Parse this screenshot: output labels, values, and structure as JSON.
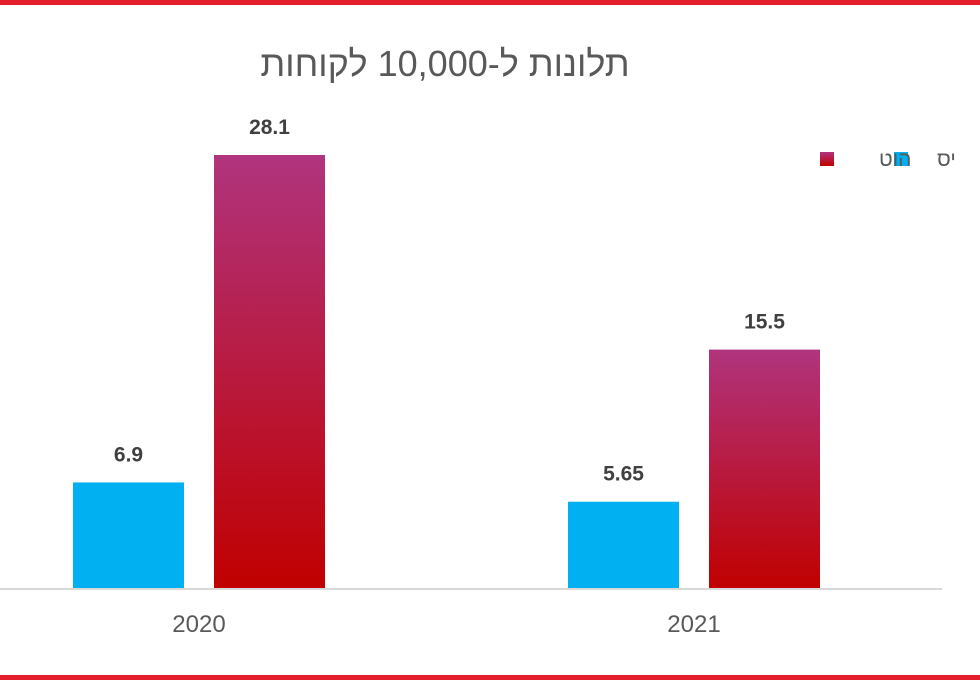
{
  "colors": {
    "frame": "#e51e2b",
    "yes": "#00b0f0",
    "hot_top": "#b0347e",
    "hot_bottom": "#c00000",
    "axis": "#d9d9d9"
  },
  "chart_data": {
    "type": "bar",
    "title": "תלונות ל-10,000 לקוחות",
    "categories": [
      "2020",
      "2021"
    ],
    "series": [
      {
        "name": "יס",
        "values": [
          6.9,
          5.65
        ],
        "labels": [
          "6.9",
          "5.65"
        ],
        "color": "#00b0f0"
      },
      {
        "name": "הוט",
        "values": [
          28.1,
          15.5
        ],
        "labels": [
          "28.1",
          "15.5"
        ],
        "color": "#b0347e"
      }
    ],
    "ylim": [
      0,
      28.1
    ],
    "xlabel": "",
    "ylabel": "",
    "grid": false,
    "legend": "top-right"
  }
}
